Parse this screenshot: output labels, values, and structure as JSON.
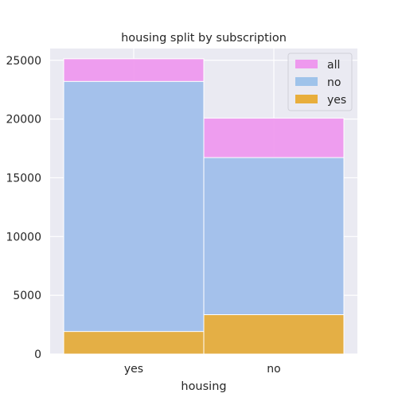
{
  "chart_data": {
    "type": "bar",
    "title": "housing split by subscription",
    "xlabel": "housing",
    "ylabel": "",
    "categories": [
      "yes",
      "no"
    ],
    "ylim": [
      0,
      26000
    ],
    "yticks": [
      0,
      5000,
      10000,
      15000,
      20000,
      25000
    ],
    "grid": true,
    "legend_position": "top-right",
    "layering": "overlaid",
    "series": [
      {
        "name": "all",
        "color": "#ee99ee",
        "values": [
          25130,
          20080
        ]
      },
      {
        "name": "no",
        "color": "#9fc3ea",
        "values": [
          23200,
          16720
        ]
      },
      {
        "name": "yes",
        "color": "#e8ae3c",
        "values": [
          1920,
          3350
        ]
      }
    ]
  }
}
